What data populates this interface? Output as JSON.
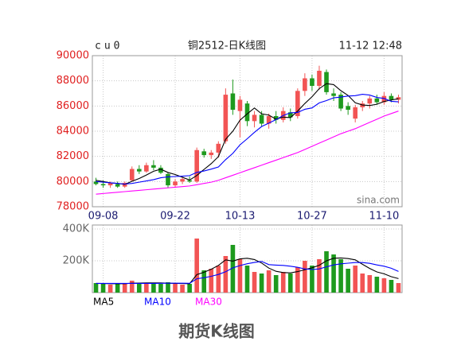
{
  "header": {
    "symbol": "cu0",
    "title": "铜2512-日K线图",
    "time": "11-12 12:48"
  },
  "caption": "期货K线图",
  "chart_data": [
    {
      "type": "candlestick",
      "categories": [
        null,
        "09-08",
        null,
        null,
        null,
        null,
        null,
        null,
        null,
        null,
        null,
        "09-22",
        null,
        null,
        null,
        null,
        null,
        null,
        null,
        null,
        "10-13",
        null,
        null,
        null,
        null,
        null,
        null,
        null,
        null,
        null,
        "10-27",
        null,
        null,
        null,
        null,
        null,
        null,
        null,
        null,
        null,
        "11-10",
        null,
        null
      ],
      "open": [
        80000,
        79800,
        79700,
        79800,
        79600,
        80100,
        81000,
        80800,
        81300,
        81100,
        80600,
        79700,
        80000,
        80100,
        80000,
        82400,
        82100,
        82300,
        83200,
        87000,
        85600,
        86200,
        84800,
        85300,
        84600,
        85200,
        84900,
        85500,
        85200,
        87200,
        88200,
        87600,
        88700,
        87000,
        86900,
        86000,
        85000,
        85900,
        86200,
        86600,
        86300,
        86800,
        86500
      ],
      "high": [
        80300,
        80100,
        80000,
        80000,
        80000,
        81200,
        81300,
        81500,
        81700,
        81300,
        80700,
        80200,
        80300,
        80400,
        82700,
        82600,
        82500,
        83200,
        87400,
        88100,
        86800,
        86400,
        85600,
        85600,
        85400,
        85600,
        85900,
        85800,
        87400,
        88600,
        88500,
        89200,
        88900,
        87400,
        87100,
        86300,
        86100,
        86400,
        86800,
        86900,
        87100,
        87000,
        86900
      ],
      "low": [
        79700,
        79500,
        79500,
        79500,
        79500,
        80000,
        80600,
        80700,
        80900,
        80600,
        79500,
        79500,
        79800,
        79900,
        79900,
        81900,
        81800,
        81900,
        83000,
        85300,
        83500,
        84400,
        84300,
        84400,
        84200,
        84600,
        84700,
        84800,
        85000,
        86800,
        87200,
        87300,
        86900,
        86400,
        85600,
        85300,
        84700,
        85600,
        85800,
        86100,
        86100,
        86300,
        86200
      ],
      "close": [
        79800,
        79700,
        79900,
        79600,
        79900,
        81000,
        80800,
        81300,
        81100,
        80700,
        79700,
        80000,
        80200,
        80000,
        82500,
        82100,
        82300,
        83000,
        86900,
        85700,
        86500,
        84800,
        85300,
        84600,
        85200,
        84900,
        85600,
        85100,
        87200,
        88200,
        87600,
        88800,
        87100,
        86800,
        85800,
        85700,
        85900,
        86200,
        86600,
        86300,
        86800,
        86500,
        86700
      ],
      "up_color": "#f25454",
      "down_color": "#1e9a1e",
      "series": [
        {
          "name": "MA5",
          "color": "#000000",
          "values": [
            80100,
            80000,
            79900,
            79850,
            79780,
            80020,
            80240,
            80520,
            80820,
            80980,
            80720,
            80560,
            80340,
            80120,
            80480,
            80960,
            81420,
            81980,
            83360,
            84000,
            84880,
            85380,
            85840,
            85380,
            85280,
            84960,
            85120,
            85080,
            85600,
            86200,
            86740,
            87380,
            87780,
            87700,
            87220,
            86840,
            86260,
            86080,
            86040,
            86140,
            86360,
            86480,
            86580
          ]
        },
        {
          "name": "MA10",
          "color": "#0000ff",
          "values": [
            80000,
            79950,
            79900,
            79850,
            79800,
            79850,
            79950,
            80050,
            80150,
            80300,
            80370,
            80400,
            80430,
            80470,
            80730,
            80840,
            80990,
            81160,
            81740,
            82240,
            82920,
            83400,
            83910,
            84370,
            84640,
            84920,
            85250,
            85460,
            85490,
            85740,
            85850,
            86250,
            86430,
            86650,
            86710,
            86790,
            86820,
            86930,
            86870,
            86680,
            86600,
            86370,
            86330
          ]
        },
        {
          "name": "MA30",
          "color": "#ff00ff",
          "values": [
            79000,
            79050,
            79100,
            79150,
            79200,
            79250,
            79300,
            79350,
            79400,
            79450,
            79500,
            79550,
            79600,
            79650,
            79750,
            79850,
            79950,
            80100,
            80300,
            80500,
            80700,
            80900,
            81100,
            81300,
            81500,
            81700,
            81900,
            82100,
            82300,
            82550,
            82800,
            83050,
            83300,
            83550,
            83800,
            84000,
            84200,
            84450,
            84700,
            84950,
            85200,
            85400,
            85600
          ]
        }
      ],
      "ylim": [
        78000,
        90000
      ],
      "yticks": [
        78000,
        80000,
        82000,
        84000,
        86000,
        88000,
        90000
      ],
      "grid": true,
      "watermark": "sina.com"
    },
    {
      "type": "bar",
      "values": [
        60000,
        55000,
        50000,
        60000,
        55000,
        75000,
        60000,
        55000,
        60000,
        55000,
        65000,
        55000,
        50000,
        55000,
        340000,
        140000,
        150000,
        170000,
        230000,
        300000,
        210000,
        170000,
        130000,
        120000,
        140000,
        110000,
        130000,
        120000,
        160000,
        200000,
        170000,
        210000,
        260000,
        240000,
        210000,
        150000,
        170000,
        120000,
        110000,
        100000,
        90000,
        80000,
        60000
      ],
      "series": [
        {
          "color": "#000000",
          "values": [
            58000,
            57000,
            56000,
            56000,
            56000,
            59000,
            60000,
            61000,
            61000,
            61000,
            59000,
            58000,
            57000,
            56000,
            113000,
            128000,
            147000,
            171000,
            206000,
            198000,
            212000,
            216000,
            208000,
            186000,
            154000,
            134000,
            126000,
            124000,
            132000,
            144000,
            156000,
            172000,
            200000,
            216000,
            218000,
            214000,
            206000,
            178000,
            152000,
            130000,
            118000,
            100000,
            88000
          ]
        },
        {
          "color": "#0000ff",
          "values": [
            58000,
            58000,
            58000,
            58000,
            58000,
            58000,
            58000,
            58000,
            58000,
            58500,
            59000,
            59000,
            59000,
            58500,
            87000,
            93500,
            102500,
            114000,
            131000,
            155500,
            170000,
            181500,
            189500,
            196000,
            176000,
            173000,
            171000,
            166000,
            159000,
            149000,
            145000,
            149000,
            162000,
            174000,
            181000,
            185000,
            189000,
            189000,
            184000,
            174000,
            166000,
            153000,
            133000
          ]
        }
      ],
      "ylim": [
        0,
        425000
      ],
      "yticks": [
        {
          "value": 200000,
          "label": "200K"
        },
        {
          "value": 400000,
          "label": "400K"
        }
      ],
      "grid": true
    }
  ]
}
